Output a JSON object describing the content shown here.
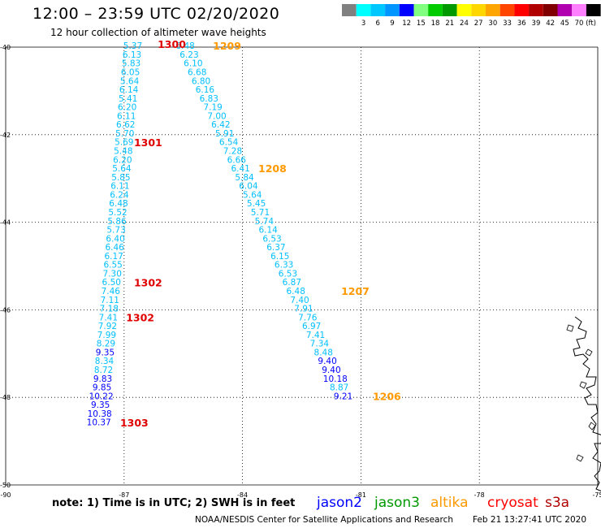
{
  "header": {
    "title": "12:00 – 23:59 UTC 02/20/2020",
    "subtitle": "12 hour collection of altimeter wave heights"
  },
  "legend": {
    "unit": "(ft)",
    "swatches": [
      {
        "color": "#808080",
        "label": ""
      },
      {
        "color": "#00ffff",
        "label": "3"
      },
      {
        "color": "#00c8ff",
        "label": "6"
      },
      {
        "color": "#0096ff",
        "label": "9"
      },
      {
        "color": "#0000ff",
        "label": "12"
      },
      {
        "color": "#80ff80",
        "label": "15"
      },
      {
        "color": "#00cc00",
        "label": "18"
      },
      {
        "color": "#009900",
        "label": "21"
      },
      {
        "color": "#ffff00",
        "label": "24"
      },
      {
        "color": "#ffd700",
        "label": "27"
      },
      {
        "color": "#ffa500",
        "label": "30"
      },
      {
        "color": "#ff4500",
        "label": "33"
      },
      {
        "color": "#ff0000",
        "label": "36"
      },
      {
        "color": "#b00000",
        "label": "39"
      },
      {
        "color": "#800000",
        "label": "42"
      },
      {
        "color": "#b000b0",
        "label": "45"
      },
      {
        "color": "#ff80ff",
        "label": "70"
      },
      {
        "color": "#000000",
        "label": ""
      }
    ]
  },
  "axes": {
    "lat": [
      -40,
      -42,
      -44,
      -46,
      -48,
      -50
    ],
    "lon": [
      -90,
      -87,
      -84,
      -81,
      -78,
      -75
    ]
  },
  "tracks": [
    {
      "name": "track-a",
      "points": [
        {
          "lon": -86.78,
          "lat": -40.04,
          "value": "5.37",
          "color": "#00bfff"
        },
        {
          "lon": -86.8,
          "lat": -40.24,
          "value": "6.13",
          "color": "#00bfff"
        },
        {
          "lon": -86.82,
          "lat": -40.44,
          "value": "5.83",
          "color": "#00bfff"
        },
        {
          "lon": -86.84,
          "lat": -40.64,
          "value": "6.05",
          "color": "#00bfff"
        },
        {
          "lon": -86.86,
          "lat": -40.84,
          "value": "5.64",
          "color": "#00bfff"
        },
        {
          "lon": -86.88,
          "lat": -41.04,
          "value": "6.14",
          "color": "#00bfff"
        },
        {
          "lon": -86.9,
          "lat": -41.24,
          "value": "5.41",
          "color": "#00bfff"
        },
        {
          "lon": -86.92,
          "lat": -41.44,
          "value": "6.20",
          "color": "#00bfff"
        },
        {
          "lon": -86.94,
          "lat": -41.64,
          "value": "6.11",
          "color": "#00bfff"
        },
        {
          "lon": -86.96,
          "lat": -41.84,
          "value": "6.62",
          "color": "#00bfff"
        },
        {
          "lon": -86.98,
          "lat": -42.04,
          "value": "5.70",
          "color": "#00bfff"
        },
        {
          "lon": -87.0,
          "lat": -42.24,
          "value": "5.69",
          "color": "#00bfff"
        },
        {
          "lon": -87.02,
          "lat": -42.44,
          "value": "5.48",
          "color": "#00bfff"
        },
        {
          "lon": -87.04,
          "lat": -42.64,
          "value": "6.20",
          "color": "#00bfff"
        },
        {
          "lon": -87.06,
          "lat": -42.84,
          "value": "5.64",
          "color": "#00bfff"
        },
        {
          "lon": -87.08,
          "lat": -43.04,
          "value": "5.85",
          "color": "#00bfff"
        },
        {
          "lon": -87.1,
          "lat": -43.24,
          "value": "6.11",
          "color": "#00bfff"
        },
        {
          "lon": -87.12,
          "lat": -43.44,
          "value": "6.24",
          "color": "#00bfff"
        },
        {
          "lon": -87.14,
          "lat": -43.64,
          "value": "6.48",
          "color": "#00bfff"
        },
        {
          "lon": -87.16,
          "lat": -43.84,
          "value": "5.52",
          "color": "#00bfff"
        },
        {
          "lon": -87.18,
          "lat": -44.04,
          "value": "5.86",
          "color": "#00bfff"
        },
        {
          "lon": -87.2,
          "lat": -44.24,
          "value": "5.73",
          "color": "#00bfff"
        },
        {
          "lon": -87.22,
          "lat": -44.44,
          "value": "6.40",
          "color": "#00bfff"
        },
        {
          "lon": -87.24,
          "lat": -44.64,
          "value": "6.46",
          "color": "#00bfff"
        },
        {
          "lon": -87.26,
          "lat": -44.84,
          "value": "6.17",
          "color": "#00bfff"
        },
        {
          "lon": -87.28,
          "lat": -45.04,
          "value": "6.55",
          "color": "#00bfff"
        },
        {
          "lon": -87.3,
          "lat": -45.24,
          "value": "7.30",
          "color": "#00bfff"
        },
        {
          "lon": -87.32,
          "lat": -45.44,
          "value": "6.50",
          "color": "#00bfff"
        },
        {
          "lon": -87.34,
          "lat": -45.64,
          "value": "7.46",
          "color": "#00bfff"
        },
        {
          "lon": -87.36,
          "lat": -45.84,
          "value": "7.11",
          "color": "#00bfff"
        },
        {
          "lon": -87.38,
          "lat": -46.04,
          "value": "7.18",
          "color": "#00bfff"
        },
        {
          "lon": -87.4,
          "lat": -46.24,
          "value": "7.41",
          "color": "#00bfff"
        },
        {
          "lon": -87.42,
          "lat": -46.44,
          "value": "7.92",
          "color": "#00bfff"
        },
        {
          "lon": -87.44,
          "lat": -46.64,
          "value": "7.99",
          "color": "#00bfff"
        },
        {
          "lon": -87.46,
          "lat": -46.84,
          "value": "8.29",
          "color": "#00bfff"
        },
        {
          "lon": -87.48,
          "lat": -47.04,
          "value": "9.35",
          "color": "#0000ff"
        },
        {
          "lon": -87.5,
          "lat": -47.24,
          "value": "8.34",
          "color": "#00bfff"
        },
        {
          "lon": -87.52,
          "lat": -47.44,
          "value": "8.72",
          "color": "#00bfff"
        },
        {
          "lon": -87.54,
          "lat": -47.64,
          "value": "9.83",
          "color": "#0000ff"
        },
        {
          "lon": -87.56,
          "lat": -47.84,
          "value": "9.85",
          "color": "#0000ff"
        },
        {
          "lon": -87.58,
          "lat": -48.04,
          "value": "10.22",
          "color": "#0000ff"
        },
        {
          "lon": -87.6,
          "lat": -48.24,
          "value": "9.35",
          "color": "#0000ff"
        },
        {
          "lon": -87.62,
          "lat": -48.44,
          "value": "10.38",
          "color": "#0000ff"
        },
        {
          "lon": -87.64,
          "lat": -48.64,
          "value": "10.37",
          "color": "#0000ff"
        }
      ]
    },
    {
      "name": "track-b",
      "points": [
        {
          "lon": -85.45,
          "lat": -40.04,
          "value": "6.48",
          "color": "#00bfff"
        },
        {
          "lon": -85.35,
          "lat": -40.24,
          "value": "6.23",
          "color": "#00bfff"
        },
        {
          "lon": -85.25,
          "lat": -40.44,
          "value": "6.10",
          "color": "#00bfff"
        },
        {
          "lon": -85.15,
          "lat": -40.64,
          "value": "6.68",
          "color": "#00bfff"
        },
        {
          "lon": -85.05,
          "lat": -40.84,
          "value": "6.80",
          "color": "#00bfff"
        },
        {
          "lon": -84.95,
          "lat": -41.04,
          "value": "6.16",
          "color": "#00bfff"
        },
        {
          "lon": -84.85,
          "lat": -41.24,
          "value": "6.83",
          "color": "#00bfff"
        },
        {
          "lon": -84.75,
          "lat": -41.44,
          "value": "7.19",
          "color": "#00bfff"
        },
        {
          "lon": -84.65,
          "lat": -41.64,
          "value": "7.00",
          "color": "#00bfff"
        },
        {
          "lon": -84.55,
          "lat": -41.84,
          "value": "6.42",
          "color": "#00bfff"
        },
        {
          "lon": -84.45,
          "lat": -42.04,
          "value": "5.91",
          "color": "#00bfff"
        },
        {
          "lon": -84.35,
          "lat": -42.24,
          "value": "6.54",
          "color": "#00bfff"
        },
        {
          "lon": -84.25,
          "lat": -42.44,
          "value": "7.28",
          "color": "#00bfff"
        },
        {
          "lon": -84.15,
          "lat": -42.64,
          "value": "6.66",
          "color": "#00bfff"
        },
        {
          "lon": -84.05,
          "lat": -42.84,
          "value": "6.41",
          "color": "#00bfff"
        },
        {
          "lon": -83.95,
          "lat": -43.04,
          "value": "5.84",
          "color": "#00bfff"
        },
        {
          "lon": -83.85,
          "lat": -43.24,
          "value": "6.04",
          "color": "#00bfff"
        },
        {
          "lon": -83.75,
          "lat": -43.44,
          "value": "5.64",
          "color": "#00bfff"
        },
        {
          "lon": -83.65,
          "lat": -43.64,
          "value": "5.45",
          "color": "#00bfff"
        },
        {
          "lon": -83.55,
          "lat": -43.84,
          "value": "5.71",
          "color": "#00bfff"
        },
        {
          "lon": -83.45,
          "lat": -44.04,
          "value": "5.74",
          "color": "#00bfff"
        },
        {
          "lon": -83.35,
          "lat": -44.24,
          "value": "6.14",
          "color": "#00bfff"
        },
        {
          "lon": -83.25,
          "lat": -44.44,
          "value": "6.53",
          "color": "#00bfff"
        },
        {
          "lon": -83.15,
          "lat": -44.64,
          "value": "6.37",
          "color": "#00bfff"
        },
        {
          "lon": -83.05,
          "lat": -44.84,
          "value": "6.15",
          "color": "#00bfff"
        },
        {
          "lon": -82.95,
          "lat": -45.04,
          "value": "6.33",
          "color": "#00bfff"
        },
        {
          "lon": -82.85,
          "lat": -45.24,
          "value": "6.53",
          "color": "#00bfff"
        },
        {
          "lon": -82.75,
          "lat": -45.44,
          "value": "6.87",
          "color": "#00bfff"
        },
        {
          "lon": -82.65,
          "lat": -45.64,
          "value": "6.48",
          "color": "#00bfff"
        },
        {
          "lon": -82.55,
          "lat": -45.84,
          "value": "7.40",
          "color": "#00bfff"
        },
        {
          "lon": -82.45,
          "lat": -46.04,
          "value": "7.91",
          "color": "#00bfff"
        },
        {
          "lon": -82.35,
          "lat": -46.24,
          "value": "7.76",
          "color": "#00bfff"
        },
        {
          "lon": -82.25,
          "lat": -46.44,
          "value": "6.97",
          "color": "#00bfff"
        },
        {
          "lon": -82.15,
          "lat": -46.64,
          "value": "7.41",
          "color": "#00bfff"
        },
        {
          "lon": -82.05,
          "lat": -46.84,
          "value": "7.34",
          "color": "#00bfff"
        },
        {
          "lon": -81.95,
          "lat": -47.04,
          "value": "8.48",
          "color": "#00bfff"
        },
        {
          "lon": -81.85,
          "lat": -47.24,
          "value": "9.40",
          "color": "#0000ff"
        },
        {
          "lon": -81.75,
          "lat": -47.44,
          "value": "9.40",
          "color": "#0000ff"
        },
        {
          "lon": -81.65,
          "lat": -47.64,
          "value": "10.18",
          "color": "#0000ff"
        },
        {
          "lon": -81.55,
          "lat": -47.84,
          "value": "8.87",
          "color": "#00bfff"
        },
        {
          "lon": -81.45,
          "lat": -48.04,
          "value": "9.21",
          "color": "#0000ff"
        }
      ]
    }
  ],
  "time_marks": [
    {
      "lon": -86.15,
      "lat": -40.02,
      "text": "1300",
      "color": "#e00000"
    },
    {
      "lon": -84.75,
      "lat": -40.06,
      "text": "1209",
      "color": "#ff9900"
    },
    {
      "lon": -86.75,
      "lat": -42.26,
      "text": "1301",
      "color": "#e00000"
    },
    {
      "lon": -83.6,
      "lat": -42.86,
      "text": "1208",
      "color": "#ff9900"
    },
    {
      "lon": -86.75,
      "lat": -45.46,
      "text": "1302",
      "color": "#e00000"
    },
    {
      "lon": -86.95,
      "lat": -46.26,
      "text": "1302",
      "color": "#e00000"
    },
    {
      "lon": -81.5,
      "lat": -45.66,
      "text": "1207",
      "color": "#ff9900"
    },
    {
      "lon": -87.1,
      "lat": -48.66,
      "text": "1303",
      "color": "#e00000"
    },
    {
      "lon": -80.7,
      "lat": -48.06,
      "text": "1206",
      "color": "#ff9900"
    }
  ],
  "footer": {
    "note": "note: 1) Time is in UTC; 2) SWH is in feet",
    "satellites": [
      {
        "name": "jason2",
        "color": "#0000ff"
      },
      {
        "name": "jason3",
        "color": "#009900"
      },
      {
        "name": "altika",
        "color": "#ff9900"
      },
      {
        "name": "cryosat",
        "color": "#ff0000"
      },
      {
        "name": "s3a",
        "color": "#b00000"
      }
    ],
    "credit": "NOAA/NESDIS Center for Satellite Applications and Research",
    "timestamp": "Feb 21 13:27:41 UTC 2020"
  }
}
